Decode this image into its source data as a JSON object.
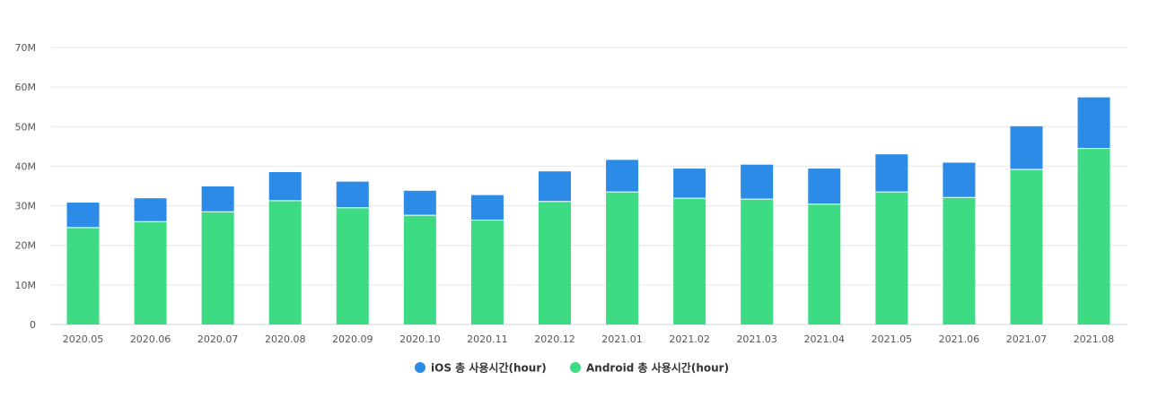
{
  "chart_data": {
    "type": "bar",
    "stacked": true,
    "categories": [
      "2020.05",
      "2020.06",
      "2020.07",
      "2020.08",
      "2020.09",
      "2020.10",
      "2020.11",
      "2020.12",
      "2021.01",
      "2021.02",
      "2021.03",
      "2021.04",
      "2021.05",
      "2021.06",
      "2021.07",
      "2021.08"
    ],
    "series": [
      {
        "name": "Android 총 사용시간(hour)",
        "color": "#3ddc84",
        "values": [
          24.5,
          26,
          28.5,
          31.3,
          29.5,
          27.6,
          26.4,
          31.1,
          33.5,
          31.9,
          31.7,
          30.4,
          33.5,
          32.1,
          39.2,
          44.5
        ]
      },
      {
        "name": "iOS 총 사용시간(hour)",
        "color": "#2b8be6",
        "values": [
          6.3,
          5.9,
          6.4,
          7.2,
          6.6,
          6.2,
          6.3,
          7.6,
          8.1,
          7.5,
          8.7,
          9.0,
          9.5,
          8.8,
          10.9,
          12.9
        ]
      }
    ],
    "y_ticks": [
      "0",
      "10M",
      "20M",
      "30M",
      "40M",
      "50M",
      "60M",
      "70M"
    ],
    "ylim": [
      0,
      70
    ],
    "grid": true,
    "legend_position": "bottom-center",
    "legend_order": [
      1,
      0
    ],
    "xlabel": "",
    "ylabel": "",
    "title": ""
  }
}
